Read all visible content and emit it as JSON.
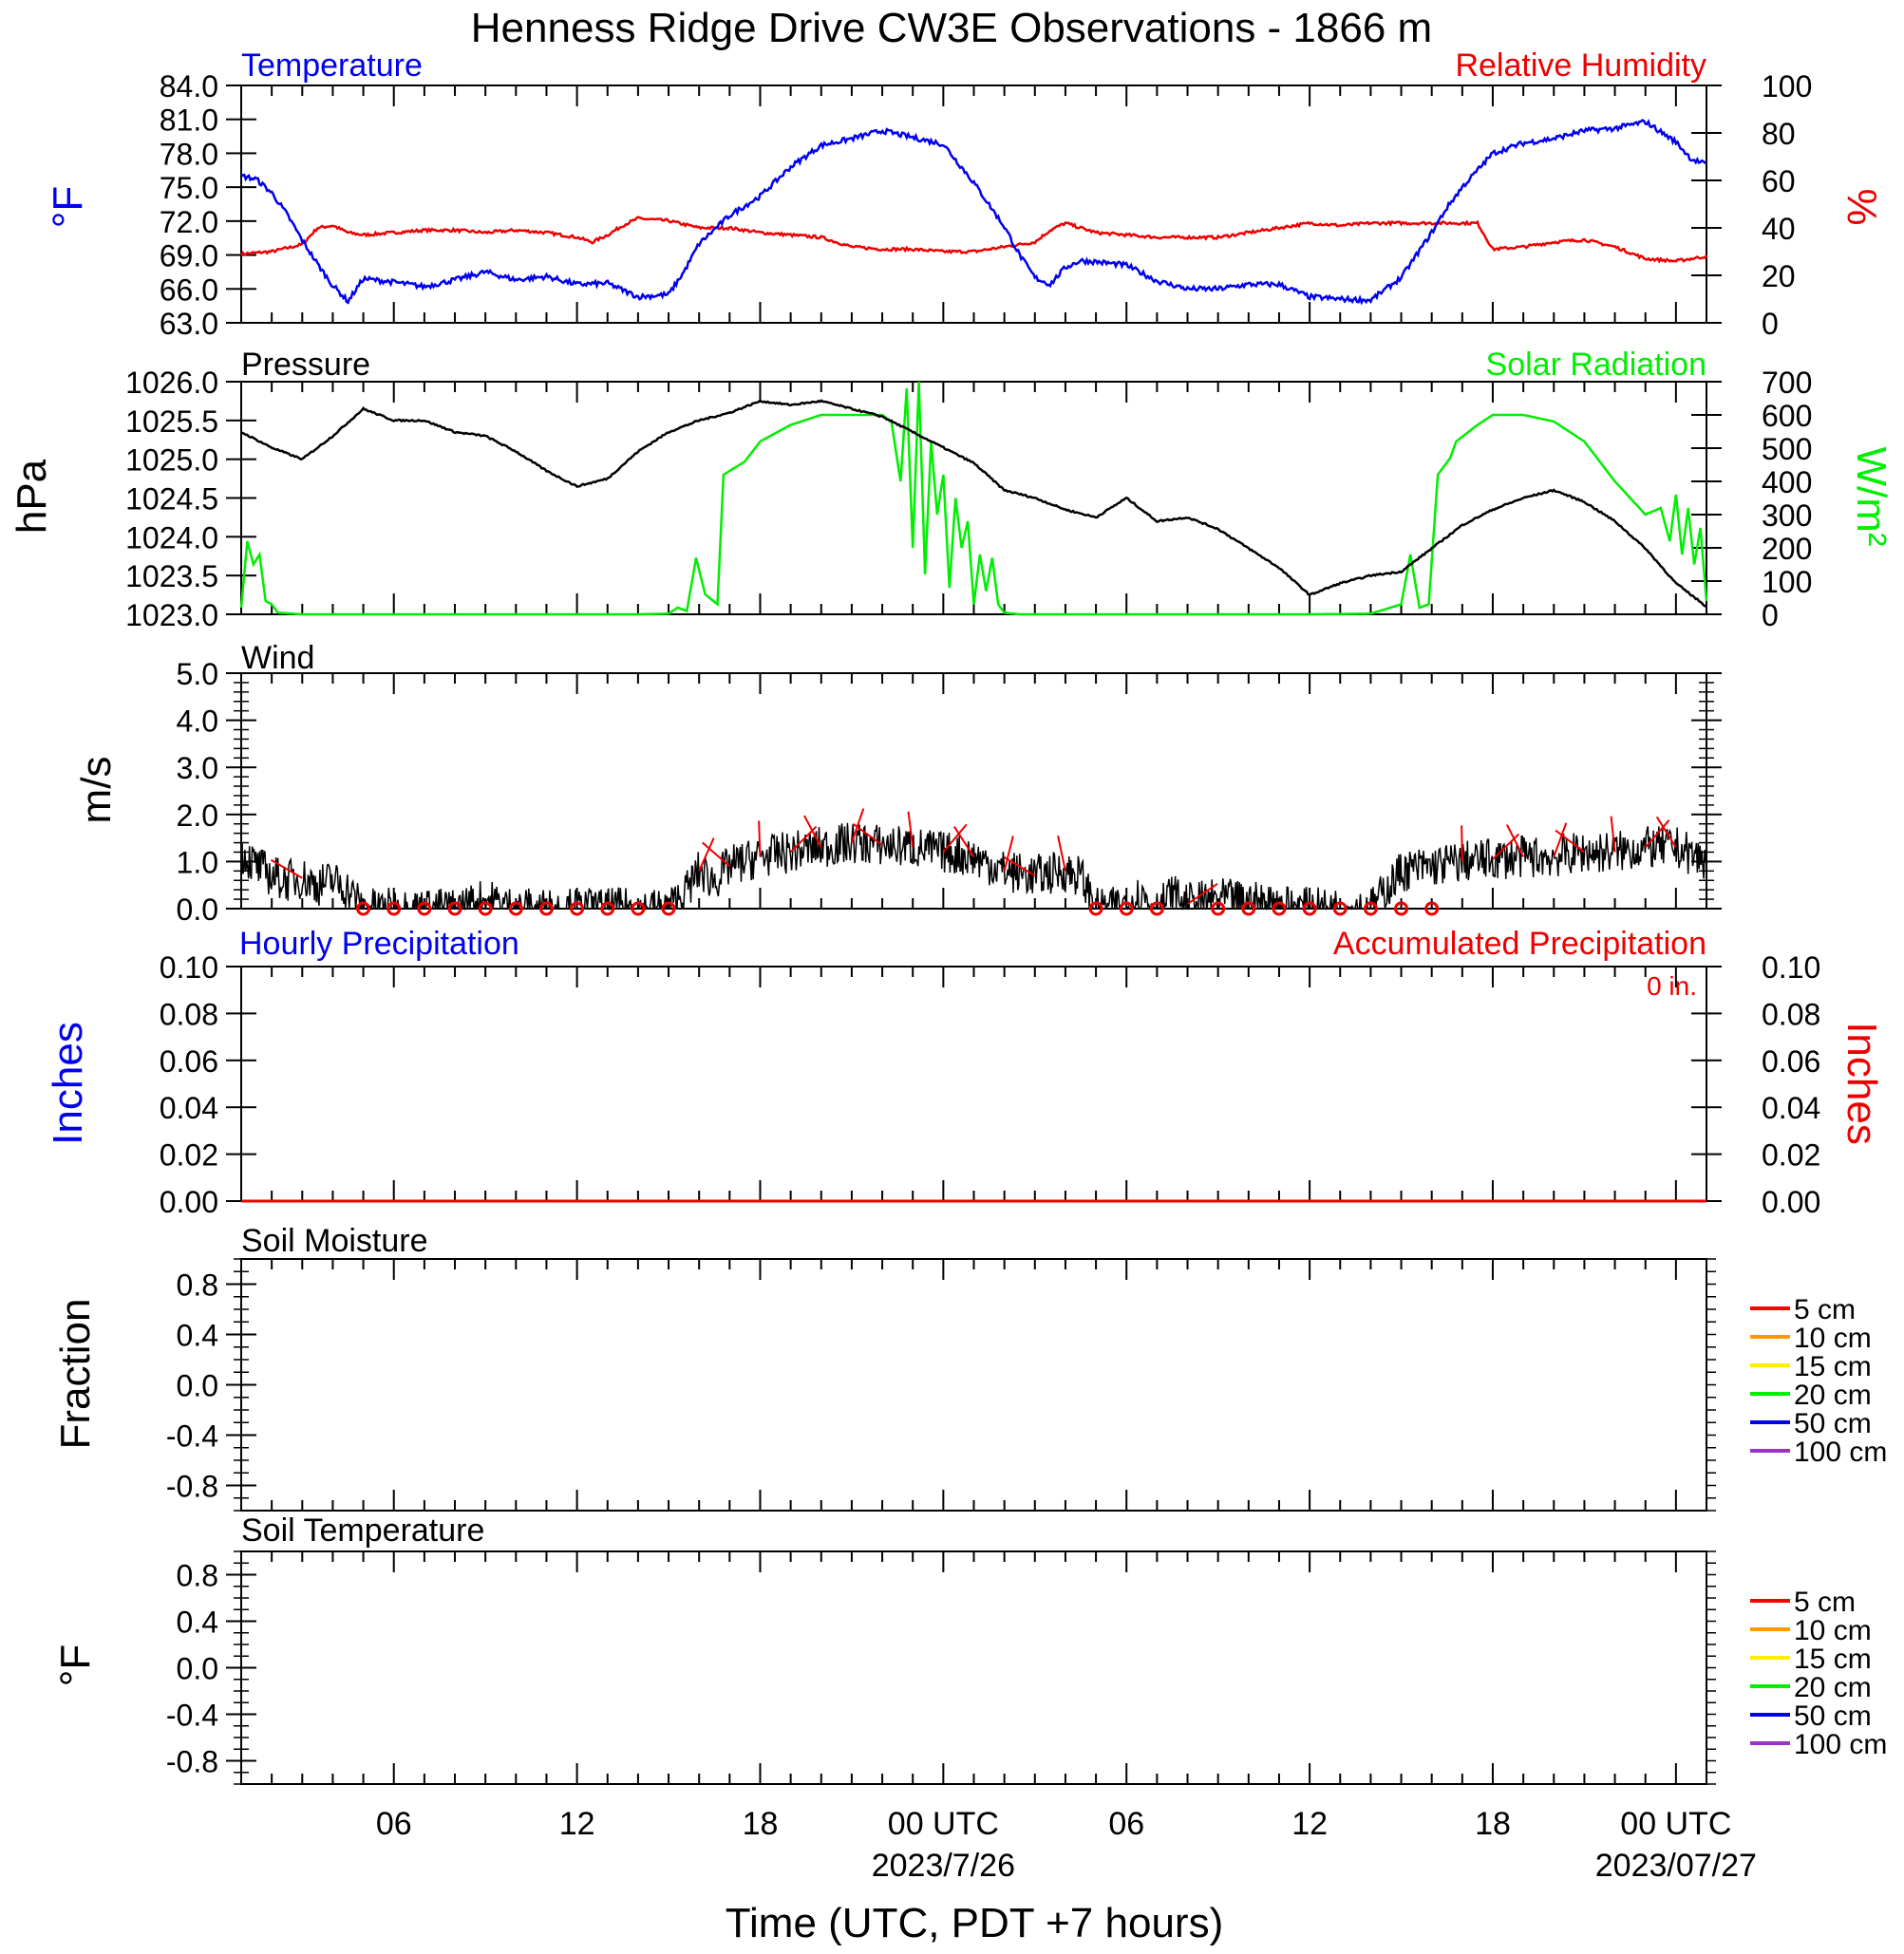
{
  "title": "Henness Ridge Drive CW3E Observations - 1866 m",
  "xaxis": {
    "label": "Time (UTC, PDT +7 hours)",
    "ticks": [
      {
        "hour": 6,
        "label": "06"
      },
      {
        "hour": 12,
        "label": "12"
      },
      {
        "hour": 18,
        "label": "18"
      },
      {
        "hour": 24,
        "label": "00 UTC"
      },
      {
        "hour": 30,
        "label": "06"
      },
      {
        "hour": 36,
        "label": "12"
      },
      {
        "hour": 42,
        "label": "18"
      },
      {
        "hour": 48,
        "label": "00 UTC"
      }
    ],
    "dates": [
      {
        "hour": 24,
        "label": "2023/7/26"
      },
      {
        "hour": 48,
        "label": "2023/07/27"
      }
    ],
    "range_hours": [
      1,
      49
    ]
  },
  "panels": {
    "temp_rh": {
      "left_title": "Temperature",
      "right_title": "Relative Humidity",
      "left_unit": "°F",
      "right_unit": "%",
      "left_color": "#0000ee",
      "right_color": "#ee0000"
    },
    "pressure_solar": {
      "left_title": "Pressure",
      "right_title": "Solar Radiation",
      "left_unit": "hPa",
      "right_unit": "W/m²",
      "left_color": "#000000",
      "right_color": "#00ee00"
    },
    "wind": {
      "title": "Wind",
      "unit": "m/s",
      "speed_color": "#000000",
      "barb_color": "#ee0000"
    },
    "precip": {
      "left_title": "Hourly Precipitation",
      "right_title": "Accumulated Precipitation",
      "total": "0 in.",
      "left_unit": "Inches",
      "right_unit": "Inches",
      "left_color": "#0000ee",
      "right_color": "#ee0000"
    },
    "soil_moisture": {
      "title": "Soil Moisture",
      "unit": "Fraction",
      "legend": [
        {
          "label": "5 cm",
          "color": "#ff0000"
        },
        {
          "label": "10 cm",
          "color": "#ff9900"
        },
        {
          "label": "15 cm",
          "color": "#ffee00"
        },
        {
          "label": "20 cm",
          "color": "#00ee00"
        },
        {
          "label": "50 cm",
          "color": "#0000ee"
        },
        {
          "label": "100 cm",
          "color": "#9933cc"
        }
      ]
    },
    "soil_temp": {
      "title": "Soil Temperature",
      "unit": "°F",
      "legend": [
        {
          "label": "5 cm",
          "color": "#ff0000"
        },
        {
          "label": "10 cm",
          "color": "#ff9900"
        },
        {
          "label": "15 cm",
          "color": "#ffee00"
        },
        {
          "label": "20 cm",
          "color": "#00ee00"
        },
        {
          "label": "50 cm",
          "color": "#0000ee"
        },
        {
          "label": "100 cm",
          "color": "#9933cc"
        }
      ]
    }
  },
  "chart_data": [
    {
      "type": "line",
      "panel": "temp_rh",
      "x_unit": "hours since 2023-07-25 00 UTC",
      "left_axis": {
        "unit": "°F",
        "range": [
          63.0,
          84.0
        ],
        "ticks": [
          "63.0",
          "66.0",
          "69.0",
          "72.0",
          "75.0",
          "78.0",
          "81.0",
          "84.0"
        ]
      },
      "right_axis": {
        "unit": "%",
        "range": [
          0,
          100
        ],
        "ticks": [
          "0",
          "20",
          "40",
          "60",
          "80",
          "100"
        ]
      },
      "series": [
        {
          "name": "Temperature",
          "axis": "left",
          "color": "#0000ee",
          "x": [
            1,
            1.5,
            2,
            2.5,
            3,
            3.5,
            4,
            4.5,
            5,
            6,
            7,
            8,
            9,
            10,
            11,
            12,
            13,
            14,
            15,
            15.5,
            16,
            17,
            18,
            19,
            20,
            21,
            22,
            23,
            24,
            25,
            26,
            26.5,
            27,
            27.5,
            28,
            28.5,
            29,
            30,
            31,
            32,
            33,
            34,
            35,
            36,
            37,
            38,
            39,
            39.5,
            40,
            40.5,
            41,
            42,
            43,
            44,
            45,
            46,
            47,
            48,
            48.5,
            49
          ],
          "y": [
            76.0,
            75.7,
            74.5,
            72.6,
            70.3,
            68.2,
            66.3,
            64.9,
            66.9,
            66.6,
            66.2,
            66.8,
            67.5,
            66.8,
            67.1,
            66.4,
            66.5,
            65.3,
            65.5,
            67.5,
            70.0,
            72.5,
            74.2,
            76.8,
            78.7,
            79.3,
            80.0,
            79.4,
            78.8,
            75.4,
            71.5,
            69.0,
            67.0,
            66.4,
            67.9,
            68.5,
            68.4,
            68.1,
            66.7,
            66.0,
            66.0,
            66.4,
            66.4,
            65.3,
            65.1,
            65.0,
            67.0,
            69.0,
            71.0,
            73.2,
            75.0,
            78.0,
            78.9,
            79.3,
            80.0,
            80.2,
            80.8,
            79.0,
            77.5,
            77.0
          ]
        },
        {
          "name": "Relative Humidity",
          "axis": "right",
          "color": "#ee0000",
          "x": [
            1,
            2,
            3,
            3.5,
            4,
            4.5,
            5,
            6,
            7,
            8,
            9,
            10,
            11,
            12,
            12.5,
            13,
            13.5,
            14,
            15,
            16,
            17,
            18,
            19,
            20,
            21,
            22,
            23,
            24,
            25,
            26,
            27,
            27.5,
            28,
            29,
            30,
            31,
            32,
            33,
            34,
            35,
            36,
            37,
            38,
            39,
            40,
            41,
            41.5,
            42,
            43,
            44,
            45,
            46,
            47,
            48,
            49
          ],
          "y": [
            29,
            30,
            33,
            40,
            41,
            38,
            37,
            38,
            39,
            39,
            38,
            39,
            38,
            36,
            34,
            37,
            41,
            44,
            43,
            40,
            40,
            38,
            37,
            36,
            32,
            31,
            31,
            30,
            30,
            32,
            34,
            39,
            42,
            38,
            37,
            36,
            36,
            36,
            38,
            40,
            42,
            41,
            42,
            42,
            42,
            42,
            42,
            31,
            32,
            34,
            35,
            32,
            27,
            26,
            28
          ]
        }
      ]
    },
    {
      "type": "line",
      "panel": "pressure_solar",
      "x_unit": "hours since 2023-07-25 00 UTC",
      "left_axis": {
        "unit": "hPa",
        "range": [
          1023.0,
          1026.0
        ],
        "ticks": [
          "1023.0",
          "1023.5",
          "1024.0",
          "1024.5",
          "1025.0",
          "1025.5",
          "1026.0"
        ]
      },
      "right_axis": {
        "unit": "W/m²",
        "range": [
          0,
          700
        ],
        "ticks": [
          "0",
          "100",
          "200",
          "300",
          "400",
          "500",
          "600",
          "700"
        ]
      },
      "series": [
        {
          "name": "Pressure",
          "axis": "left",
          "color": "#000000",
          "x": [
            1,
            2,
            3,
            4,
            5,
            6,
            7,
            8,
            9,
            10,
            11,
            12,
            13,
            14,
            15,
            16,
            17,
            18,
            19,
            20,
            21,
            22,
            23,
            24,
            25,
            26,
            27,
            28,
            29,
            30,
            31,
            32,
            33,
            34,
            35,
            36,
            37,
            38,
            39,
            40,
            41,
            42,
            43,
            44,
            45,
            46,
            47,
            48,
            49
          ],
          "y": [
            1025.35,
            1025.15,
            1025.0,
            1025.3,
            1025.65,
            1025.5,
            1025.5,
            1025.35,
            1025.3,
            1025.1,
            1024.85,
            1024.65,
            1024.75,
            1025.1,
            1025.35,
            1025.5,
            1025.6,
            1025.75,
            1025.7,
            1025.75,
            1025.65,
            1025.55,
            1025.35,
            1025.15,
            1024.95,
            1024.6,
            1024.5,
            1024.35,
            1024.25,
            1024.5,
            1024.2,
            1024.25,
            1024.1,
            1023.85,
            1023.6,
            1023.25,
            1023.4,
            1023.5,
            1023.55,
            1023.85,
            1024.15,
            1024.35,
            1024.5,
            1024.6,
            1024.45,
            1024.2,
            1023.85,
            1023.4,
            1023.1
          ]
        },
        {
          "name": "Solar Radiation",
          "axis": "right",
          "color": "#00ee00",
          "x": [
            1,
            1.2,
            1.4,
            1.6,
            1.8,
            2,
            2.2,
            3,
            5,
            10,
            12,
            14,
            15,
            15.3,
            15.6,
            15.9,
            16.2,
            16.6,
            16.8,
            17.5,
            18,
            19,
            20,
            21,
            22,
            22.3,
            22.6,
            22.8,
            23,
            23.2,
            23.4,
            23.6,
            23.8,
            24,
            24.2,
            24.4,
            24.6,
            24.8,
            25,
            25.2,
            25.4,
            25.6,
            25.8,
            26,
            26.5,
            28,
            32,
            36,
            38,
            39,
            39.3,
            39.6,
            39.9,
            40.2,
            40.6,
            40.8,
            41.5,
            42,
            43,
            44,
            45,
            46,
            47,
            47.5,
            47.8,
            48,
            48.2,
            48.4,
            48.6,
            48.8,
            49
          ],
          "y": [
            20,
            220,
            150,
            180,
            40,
            30,
            5,
            0,
            0,
            0,
            0,
            0,
            2,
            20,
            10,
            170,
            60,
            30,
            420,
            460,
            520,
            570,
            600,
            600,
            600,
            580,
            400,
            680,
            200,
            700,
            120,
            520,
            300,
            420,
            80,
            350,
            200,
            280,
            30,
            180,
            70,
            170,
            30,
            5,
            0,
            0,
            0,
            0,
            2,
            30,
            180,
            20,
            30,
            420,
            470,
            520,
            570,
            600,
            600,
            580,
            520,
            400,
            300,
            320,
            220,
            360,
            180,
            320,
            150,
            260,
            40
          ]
        }
      ]
    },
    {
      "type": "line",
      "panel": "wind",
      "x_unit": "hours since 2023-07-25 00 UTC",
      "y_axis": {
        "unit": "m/s",
        "range": [
          0,
          5.0
        ],
        "ticks": [
          "0.0",
          "1.0",
          "2.0",
          "3.0",
          "4.0",
          "5.0"
        ]
      },
      "series": [
        {
          "name": "Wind speed",
          "color": "#000000",
          "x": [
            1,
            1.5,
            2,
            2.5,
            3,
            3.5,
            4,
            4.5,
            5,
            8,
            9,
            10,
            13,
            15,
            15.5,
            16,
            16.5,
            17,
            18,
            19,
            20,
            21,
            22,
            23,
            24,
            25,
            26,
            27,
            28,
            28.5,
            29,
            29.5,
            30,
            30.5,
            31,
            31.5,
            32,
            33,
            34,
            35,
            36,
            37,
            38,
            38.5,
            39,
            40,
            41,
            42,
            43,
            44,
            45,
            46,
            47,
            48,
            49
          ],
          "y": [
            1.2,
            0.9,
            0.7,
            0.6,
            0.65,
            0.5,
            0.6,
            0.4,
            0.0,
            0.0,
            0.2,
            0.0,
            0.0,
            0.0,
            0.3,
            0.8,
            0.6,
            0.9,
            1.1,
            1.2,
            1.3,
            1.4,
            1.35,
            1.3,
            1.2,
            1.1,
            0.8,
            0.7,
            0.8,
            0.7,
            0.0,
            0.0,
            0.1,
            0.3,
            0.0,
            0.3,
            0.1,
            0.2,
            0.15,
            0.1,
            0.0,
            0.0,
            0.0,
            0.4,
            0.8,
            0.9,
            1.0,
            1.05,
            1.1,
            1.1,
            1.2,
            1.2,
            1.3,
            1.3,
            1.0
          ]
        }
      ],
      "barbs": {
        "hours": [
          3,
          5,
          6,
          7,
          8,
          9,
          10,
          11,
          12,
          13,
          14,
          15,
          16,
          17,
          18,
          19,
          20,
          21,
          22,
          23,
          24,
          25,
          26,
          27,
          28,
          29,
          30,
          31,
          32,
          33,
          34,
          35,
          36,
          37,
          38,
          39,
          40,
          41,
          42,
          43,
          44,
          45,
          46,
          47,
          48
        ],
        "calm_hours": [
          5,
          6,
          7,
          8,
          9,
          10,
          11,
          12,
          13,
          14,
          15,
          29,
          30,
          31,
          33,
          34,
          35,
          36,
          37,
          38,
          39,
          40
        ]
      }
    },
    {
      "type": "line",
      "panel": "precip",
      "x_unit": "hours since 2023-07-25 00 UTC",
      "left_axis": {
        "unit": "Inches",
        "range": [
          0,
          0.1
        ],
        "ticks": [
          "0.00",
          "0.02",
          "0.04",
          "0.06",
          "0.08",
          "0.10"
        ]
      },
      "right_axis": {
        "unit": "Inches",
        "range": [
          0,
          0.1
        ],
        "ticks": [
          "0.00",
          "0.02",
          "0.04",
          "0.06",
          "0.08",
          "0.10"
        ]
      },
      "series": [
        {
          "name": "Hourly Precipitation",
          "axis": "left",
          "color": "#0000ee",
          "x": [
            1,
            49
          ],
          "y": [
            0,
            0
          ]
        },
        {
          "name": "Accumulated Precipitation",
          "axis": "right",
          "color": "#ee0000",
          "x": [
            1,
            49
          ],
          "y": [
            0,
            0
          ]
        }
      ]
    },
    {
      "type": "line",
      "panel": "soil_moisture",
      "y_axis": {
        "unit": "Fraction",
        "range": [
          -1.0,
          1.0
        ],
        "ticks": [
          "-0.8",
          "-0.4",
          "0.0",
          "0.4",
          "0.8"
        ]
      },
      "series": []
    },
    {
      "type": "line",
      "panel": "soil_temp",
      "y_axis": {
        "unit": "°F",
        "range": [
          -1.0,
          1.0
        ],
        "ticks": [
          "-0.8",
          "-0.4",
          "0.0",
          "0.4",
          "0.8"
        ]
      },
      "series": []
    }
  ]
}
